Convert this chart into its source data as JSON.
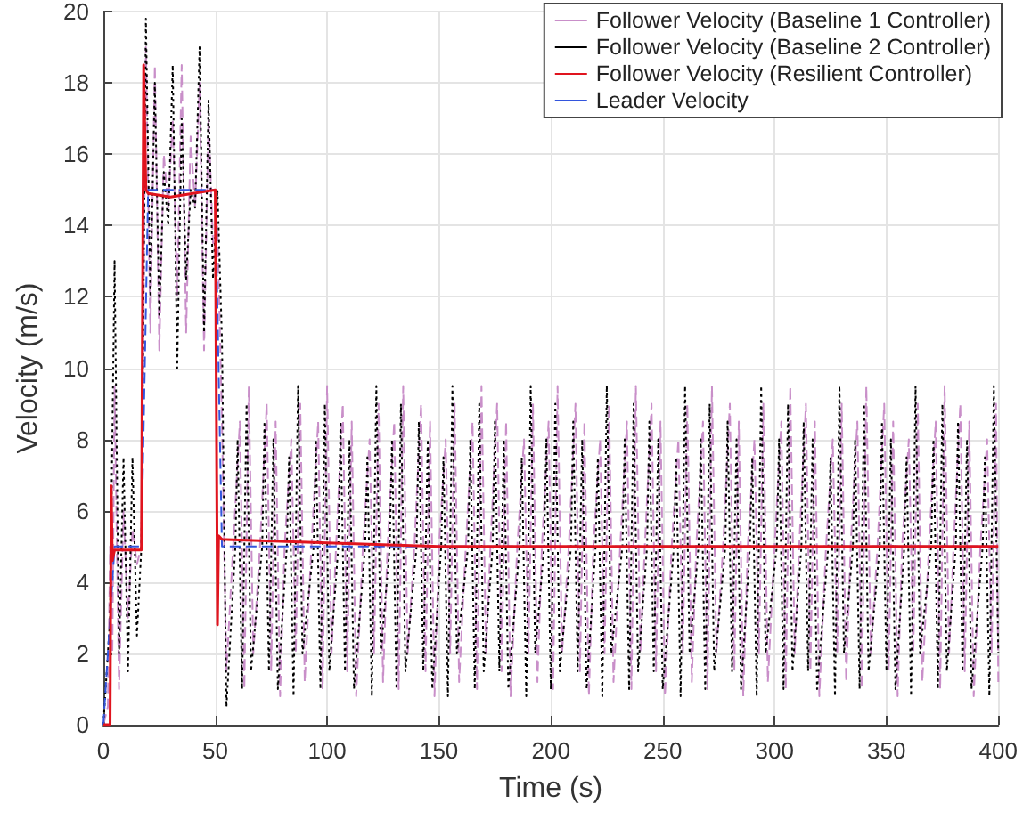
{
  "chart_data": {
    "type": "line",
    "xlabel": "Time (s)",
    "ylabel": "Velocity (m/s)",
    "xlim": [
      0,
      400
    ],
    "ylim": [
      0,
      20
    ],
    "xticks": [
      0,
      50,
      100,
      150,
      200,
      250,
      300,
      350,
      400
    ],
    "yticks": [
      0,
      2,
      4,
      6,
      8,
      10,
      12,
      14,
      16,
      18,
      20
    ],
    "grid": true,
    "legend": "top right",
    "marker": "none",
    "series": [
      {
        "name": "Follower Velocity (Baseline 1 Controller)",
        "color": "#c98fc9",
        "line_style": "dashed",
        "x": [
          0,
          2,
          3,
          4,
          5,
          7,
          9,
          11,
          13,
          15,
          17,
          19,
          21,
          23,
          25,
          27,
          29,
          31,
          33,
          35,
          37,
          39,
          41,
          43,
          45,
          47,
          49,
          51,
          53,
          55,
          58,
          61,
          63,
          65,
          67,
          70,
          73,
          75,
          77,
          79,
          81,
          84,
          86,
          88,
          90,
          93,
          96,
          98,
          100,
          102,
          104,
          107,
          109,
          111,
          113,
          116,
          119,
          121,
          123,
          125,
          127,
          130,
          132,
          134,
          136,
          139,
          142,
          144,
          146,
          148,
          150,
          153,
          155,
          157,
          159,
          162,
          165,
          167,
          169,
          171,
          173,
          176,
          178,
          180,
          182,
          185,
          188,
          190,
          192,
          194,
          196,
          199,
          201,
          203,
          205,
          208,
          211,
          213,
          215,
          217,
          219,
          222,
          224,
          226,
          228,
          231,
          234,
          236,
          238,
          240,
          242,
          245,
          247,
          249,
          251,
          254,
          257,
          259,
          261,
          263,
          265,
          268,
          270,
          272,
          274,
          277,
          280,
          282,
          284,
          286,
          288,
          291,
          293,
          295,
          297,
          300,
          303,
          305,
          307,
          309,
          311,
          314,
          316,
          318,
          320,
          323,
          326,
          328,
          330,
          332,
          334,
          337,
          339,
          341,
          343,
          346,
          349,
          351,
          353,
          355,
          357,
          360,
          362,
          364,
          366,
          369,
          372,
          374,
          376,
          378,
          380,
          383,
          385,
          387,
          389,
          392,
          395,
          397,
          399,
          400
        ],
        "values": [
          0,
          0.5,
          5,
          2,
          9.5,
          1,
          6,
          3,
          5.5,
          4.5,
          5,
          19,
          11,
          18.5,
          10.5,
          16,
          14.5,
          17,
          12,
          18.5,
          11,
          16.5,
          14.5,
          18,
          10.5,
          17,
          13.5,
          14,
          8.5,
          1.5,
          5,
          8.5,
          1,
          9.5,
          2,
          5,
          9,
          1.5,
          8.5,
          0.8,
          5,
          8,
          2,
          9,
          1.2,
          5,
          8.5,
          1,
          9.5,
          2,
          5,
          9,
          1.5,
          8.5,
          0.8,
          5,
          8,
          2,
          9,
          1.2,
          5,
          8.5,
          1,
          9.5,
          2,
          5,
          9,
          1.5,
          8.5,
          0.8,
          5,
          8,
          2,
          9,
          1.2,
          5,
          8.5,
          1,
          9.5,
          2,
          5,
          9,
          1.5,
          8.5,
          0.8,
          5,
          8,
          2,
          9,
          1.2,
          5,
          8.5,
          1,
          9.5,
          2,
          5,
          9,
          1.5,
          8.5,
          0.8,
          5,
          8,
          2,
          9,
          1.2,
          5,
          8.5,
          1,
          9.5,
          2,
          5,
          9,
          1.5,
          8.5,
          0.8,
          5,
          8,
          2,
          9,
          1.2,
          5,
          8.5,
          1,
          9.5,
          2,
          5,
          9,
          1.5,
          8.5,
          0.8,
          5,
          8,
          2,
          9,
          1.2,
          5,
          8.5,
          1,
          9.5,
          2,
          5,
          9,
          1.5,
          8.5,
          0.8,
          5,
          8,
          2,
          9,
          1.2,
          5,
          8.5,
          1,
          9.5,
          2,
          5,
          9,
          1.5,
          8.5,
          0.8,
          5,
          8,
          2,
          9,
          1.2,
          5,
          8.5,
          1,
          9.5,
          2,
          5,
          9,
          1.5,
          8.5,
          0.8,
          5,
          8,
          2,
          9,
          1.2
        ]
      },
      {
        "name": "Follower Velocity (Baseline 2 Controller)",
        "color": "#000000",
        "line_style": "dotted",
        "x": [
          0,
          3,
          5,
          7,
          9,
          11,
          13,
          15,
          17,
          19,
          21,
          23,
          25,
          27,
          29,
          31,
          33,
          35,
          37,
          39,
          41,
          43,
          45,
          47,
          49,
          51,
          53,
          55,
          59,
          60,
          62,
          64,
          66,
          71,
          72,
          74,
          76,
          78,
          82,
          83,
          85,
          87,
          89,
          94,
          95,
          97,
          99,
          101,
          105,
          106,
          108,
          110,
          112,
          117,
          118,
          120,
          122,
          124,
          128,
          129,
          131,
          133,
          135,
          140,
          141,
          143,
          145,
          147,
          151,
          152,
          154,
          156,
          158,
          163,
          164,
          166,
          168,
          170,
          174,
          175,
          177,
          179,
          181,
          186,
          187,
          189,
          191,
          193,
          197,
          198,
          200,
          202,
          204,
          209,
          210,
          212,
          214,
          216,
          220,
          221,
          223,
          225,
          227,
          232,
          233,
          235,
          237,
          239,
          243,
          244,
          246,
          248,
          250,
          255,
          256,
          258,
          260,
          262,
          266,
          267,
          269,
          271,
          273,
          278,
          279,
          281,
          283,
          285,
          289,
          290,
          292,
          294,
          296,
          301,
          302,
          304,
          306,
          308,
          312,
          313,
          315,
          317,
          319,
          324,
          325,
          327,
          329,
          331,
          335,
          336,
          338,
          340,
          342,
          347,
          348,
          350,
          352,
          354,
          358,
          359,
          361,
          363,
          365,
          370,
          371,
          373,
          375,
          377,
          381,
          382,
          384,
          386,
          388,
          393,
          394,
          396,
          398,
          400
        ],
        "values": [
          0,
          3,
          13,
          2,
          7.5,
          1.5,
          7.5,
          2.5,
          5,
          19.8,
          12,
          18,
          11.5,
          15.5,
          14,
          18.5,
          10,
          17,
          12.5,
          15,
          14.5,
          19,
          11,
          17.5,
          12.5,
          15,
          10.8,
          0.5,
          5,
          8,
          1,
          9,
          1.5,
          5,
          8.5,
          1.5,
          8,
          1,
          5,
          7.5,
          0.8,
          9.5,
          2,
          5,
          8,
          1,
          9,
          1.5,
          5,
          8.5,
          1.5,
          8,
          1,
          5,
          7.5,
          0.8,
          9.5,
          2,
          5,
          8,
          1,
          9,
          1.5,
          5,
          8.5,
          1.5,
          8,
          1,
          5,
          7.5,
          0.8,
          9.5,
          2,
          5,
          8,
          1,
          9,
          1.5,
          5,
          8.5,
          1.5,
          8,
          1,
          5,
          7.5,
          0.8,
          9.5,
          2,
          5,
          8,
          1,
          9,
          1.5,
          5,
          8.5,
          1.5,
          8,
          1,
          5,
          7.5,
          0.8,
          9.5,
          2,
          5,
          8,
          1,
          9,
          1.5,
          5,
          8.5,
          1.5,
          8,
          1,
          5,
          7.5,
          0.8,
          9.5,
          2,
          5,
          8,
          1,
          9,
          1.5,
          5,
          8.5,
          1.5,
          8,
          1,
          5,
          7.5,
          0.8,
          9.5,
          2,
          5,
          8,
          1,
          9,
          1.5,
          5,
          8.5,
          1.5,
          8,
          1,
          5,
          7.5,
          0.8,
          9.5,
          2,
          5,
          8,
          1,
          9,
          1.5,
          5,
          8.5,
          1.5,
          8,
          1,
          5,
          7.5,
          0.8,
          9.5,
          2,
          5,
          8,
          1,
          9,
          1.5,
          5,
          8.5,
          1.5,
          8,
          1,
          5,
          7.5,
          0.8,
          9.5,
          2
        ]
      },
      {
        "name": "Follower Velocity (Resilient Controller)",
        "color": "#e0141e",
        "line_style": "solid",
        "x": [
          0,
          3,
          3.5,
          4,
          5,
          17,
          18,
          19,
          20,
          30,
          40,
          50,
          51,
          51.5,
          53,
          100,
          150,
          200,
          400
        ],
        "values": [
          0,
          0,
          6.7,
          4.6,
          4.9,
          4.9,
          18.5,
          15,
          14.9,
          14.8,
          14.9,
          15,
          2.8,
          5.3,
          5.2,
          5.1,
          5,
          5,
          5
        ]
      },
      {
        "name": "Leader Velocity",
        "color": "#3355dd",
        "line_style": "dashed",
        "x": [
          0,
          5,
          17,
          20,
          50,
          53,
          400
        ],
        "values": [
          0,
          5,
          5,
          15,
          15,
          5,
          5
        ]
      }
    ]
  }
}
